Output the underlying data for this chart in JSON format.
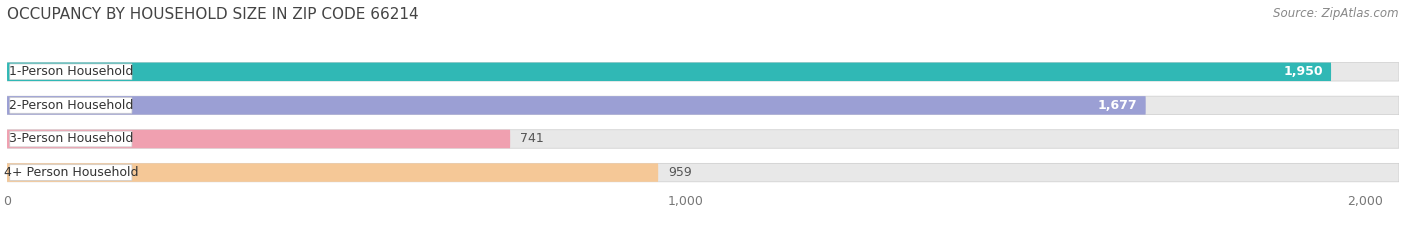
{
  "title": "OCCUPANCY BY HOUSEHOLD SIZE IN ZIP CODE 66214",
  "source": "Source: ZipAtlas.com",
  "categories": [
    "1-Person Household",
    "2-Person Household",
    "3-Person Household",
    "4+ Person Household"
  ],
  "values": [
    1950,
    1677,
    741,
    959
  ],
  "bar_colors": [
    "#30b8b5",
    "#9b9fd4",
    "#f0a0b0",
    "#f5c897"
  ],
  "value_inside": [
    true,
    true,
    false,
    false
  ],
  "value_colors_inside": [
    "#ffffff",
    "#ffffff",
    "#555555",
    "#555555"
  ],
  "xlim": [
    0,
    2050
  ],
  "xticks": [
    0,
    1000,
    2000
  ],
  "xticklabels": [
    "0",
    "1,000",
    "2,000"
  ],
  "title_fontsize": 11,
  "source_fontsize": 8.5,
  "label_fontsize": 9,
  "value_fontsize": 9,
  "background_color": "#ffffff",
  "bar_background_color": "#e8e8e8",
  "bar_height": 0.55,
  "rounding_size": 0.22
}
